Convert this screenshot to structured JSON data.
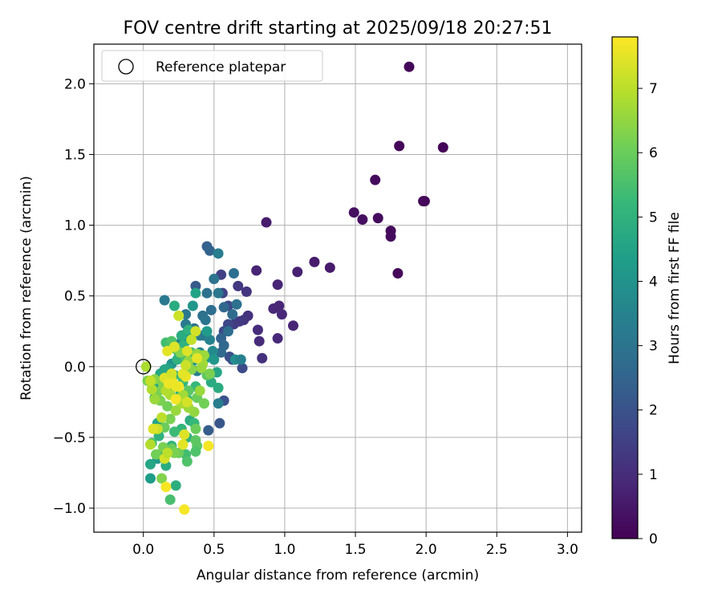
{
  "chart_data": {
    "type": "scatter",
    "title": "FOV centre drift starting at 2025/09/18 20:27:51",
    "xlabel": "Angular distance from reference (arcmin)",
    "ylabel": "Rotation from reference (arcmin)",
    "xlim": [
      -0.35,
      3.1
    ],
    "ylim": [
      -1.17,
      2.28
    ],
    "xticks": [
      0.0,
      0.5,
      1.0,
      1.5,
      2.0,
      2.5,
      3.0
    ],
    "xtick_labels": [
      "0.0",
      "0.5",
      "1.0",
      "1.5",
      "2.0",
      "2.5",
      "3.0"
    ],
    "yticks": [
      -1.0,
      -0.5,
      0.0,
      0.5,
      1.0,
      1.5,
      2.0
    ],
    "ytick_labels": [
      "−1.0",
      "−0.5",
      "0.0",
      "0.5",
      "1.0",
      "1.5",
      "2.0"
    ],
    "grid": true,
    "legend": {
      "placement": "top-left",
      "label": "Reference platepar",
      "marker": "open-circle"
    },
    "reference_point": {
      "x": 0.0,
      "y": 0.0
    },
    "colorbar": {
      "label": "Hours from first FF file",
      "colormap": "viridis",
      "range": [
        0,
        7.8
      ],
      "ticks": [
        0,
        1,
        2,
        3,
        4,
        5,
        6,
        7
      ],
      "tick_labels": [
        "0",
        "1",
        "2",
        "3",
        "4",
        "5",
        "6",
        "7"
      ]
    },
    "colormap_stops": [
      "#440154",
      "#482878",
      "#3e4989",
      "#31688e",
      "#26828e",
      "#1f9e89",
      "#35b779",
      "#6ece58",
      "#b5de2b",
      "#fde725"
    ],
    "points": [
      [
        1.88,
        2.12,
        0.1
      ],
      [
        1.81,
        1.56,
        0.1
      ],
      [
        2.12,
        1.55,
        0.1
      ],
      [
        1.64,
        1.32,
        0.2
      ],
      [
        1.98,
        1.17,
        0.1
      ],
      [
        1.99,
        1.17,
        0.15
      ],
      [
        1.49,
        1.09,
        0.3
      ],
      [
        1.55,
        1.04,
        0.3
      ],
      [
        1.66,
        1.05,
        0.25
      ],
      [
        1.75,
        0.96,
        0.2
      ],
      [
        1.75,
        0.92,
        0.2
      ],
      [
        1.8,
        0.66,
        0.15
      ],
      [
        0.87,
        1.02,
        0.6
      ],
      [
        1.21,
        0.74,
        0.6
      ],
      [
        1.32,
        0.7,
        0.55
      ],
      [
        1.09,
        0.67,
        0.7
      ],
      [
        0.8,
        0.68,
        0.8
      ],
      [
        0.95,
        0.58,
        0.8
      ],
      [
        0.92,
        0.41,
        0.9
      ],
      [
        0.96,
        0.43,
        0.85
      ],
      [
        0.98,
        0.37,
        0.9
      ],
      [
        1.06,
        0.29,
        0.8
      ],
      [
        0.95,
        0.2,
        0.9
      ],
      [
        0.82,
        0.18,
        0.95
      ],
      [
        0.81,
        0.26,
        1.0
      ],
      [
        0.84,
        0.06,
        1.1
      ],
      [
        0.74,
        0.36,
        1.1
      ],
      [
        0.73,
        0.53,
        1.2
      ],
      [
        0.67,
        0.57,
        1.3
      ],
      [
        0.71,
        0.33,
        1.2
      ],
      [
        0.68,
        0.32,
        1.3
      ],
      [
        0.64,
        0.3,
        1.4
      ],
      [
        0.55,
        0.65,
        1.5
      ],
      [
        0.56,
        0.52,
        1.6
      ],
      [
        0.6,
        0.43,
        1.7
      ],
      [
        0.6,
        0.3,
        1.7
      ],
      [
        0.57,
        0.25,
        1.8
      ],
      [
        0.61,
        0.07,
        1.9
      ],
      [
        0.63,
        0.05,
        1.9
      ],
      [
        0.7,
        -0.01,
        1.8
      ],
      [
        0.57,
        -0.24,
        2.0
      ],
      [
        0.54,
        -0.4,
        2.1
      ],
      [
        0.46,
        -0.45,
        2.3
      ],
      [
        0.37,
        0.57,
        2.2
      ],
      [
        0.45,
        0.85,
        2.4
      ],
      [
        0.47,
        0.82,
        2.5
      ],
      [
        0.53,
        0.8,
        3.3
      ],
      [
        0.5,
        0.62,
        3.0
      ],
      [
        0.45,
        0.52,
        2.9
      ],
      [
        0.53,
        0.52,
        3.1
      ],
      [
        0.64,
        0.66,
        2.8
      ],
      [
        0.57,
        0.42,
        2.6
      ],
      [
        0.63,
        0.37,
        2.7
      ],
      [
        0.66,
        0.44,
        2.9
      ],
      [
        0.6,
        0.25,
        2.8
      ],
      [
        0.55,
        0.2,
        2.5
      ],
      [
        0.57,
        0.15,
        2.6
      ],
      [
        0.55,
        0.1,
        2.7
      ],
      [
        0.48,
        0.4,
        2.8
      ],
      [
        0.42,
        0.36,
        2.9
      ],
      [
        0.44,
        0.33,
        3.0
      ],
      [
        0.3,
        0.37,
        3.1
      ],
      [
        0.3,
        0.3,
        3.2
      ],
      [
        0.33,
        0.23,
        3.3
      ],
      [
        0.36,
        0.27,
        3.0
      ],
      [
        0.4,
        0.22,
        3.3
      ],
      [
        0.43,
        0.22,
        3.2
      ],
      [
        0.47,
        0.19,
        3.5
      ],
      [
        0.49,
        0.11,
        3.7
      ],
      [
        0.4,
        0.1,
        3.6
      ],
      [
        0.35,
        0.04,
        3.8
      ],
      [
        0.38,
        -0.03,
        3.3
      ],
      [
        0.31,
        0.24,
        3.7
      ],
      [
        0.3,
        0.18,
        4.2
      ],
      [
        0.35,
        0.43,
        4.1
      ],
      [
        0.37,
        0.52,
        4.5
      ],
      [
        0.45,
        0.25,
        4.2
      ],
      [
        0.44,
        0.06,
        4.4
      ],
      [
        0.5,
        0.05,
        4.1
      ],
      [
        0.52,
        -0.04,
        4.6
      ],
      [
        0.48,
        -0.11,
        4.8
      ],
      [
        0.53,
        -0.15,
        4.8
      ],
      [
        0.53,
        -0.26,
        3.3
      ],
      [
        0.65,
        0.05,
        3.8
      ],
      [
        0.69,
        0.05,
        3.4
      ],
      [
        0.15,
        0.47,
        3.2
      ],
      [
        0.22,
        0.43,
        4.8
      ],
      [
        0.25,
        0.16,
        3.2
      ],
      [
        0.25,
        0.1,
        4.3
      ],
      [
        0.2,
        0.02,
        3.9
      ],
      [
        0.18,
        -0.01,
        4.4
      ],
      [
        0.15,
        -0.02,
        4.6
      ],
      [
        0.1,
        -0.12,
        4.5
      ],
      [
        0.08,
        -0.22,
        4.7
      ],
      [
        0.12,
        -0.05,
        4.6
      ],
      [
        0.17,
        -0.09,
        4.7
      ],
      [
        0.2,
        -0.15,
        4.8
      ],
      [
        0.22,
        -0.06,
        5.0
      ],
      [
        0.28,
        -0.11,
        5.2
      ],
      [
        0.26,
        -0.2,
        5.0
      ],
      [
        0.31,
        -0.23,
        5.1
      ],
      [
        0.37,
        -0.14,
        5.2
      ],
      [
        0.33,
        -0.38,
        4.8
      ],
      [
        0.36,
        -0.4,
        5.2
      ],
      [
        0.31,
        -0.5,
        5.0
      ],
      [
        0.27,
        -0.44,
        5.1
      ],
      [
        0.22,
        -0.46,
        5.3
      ],
      [
        0.2,
        -0.56,
        5.1
      ],
      [
        0.18,
        -0.58,
        4.6
      ],
      [
        0.14,
        -0.6,
        4.7
      ],
      [
        0.1,
        -0.65,
        4.2
      ],
      [
        0.05,
        -0.69,
        4.6
      ],
      [
        0.05,
        -0.79,
        4.3
      ],
      [
        0.16,
        -0.7,
        4.8
      ],
      [
        0.23,
        -0.84,
        4.9
      ],
      [
        0.19,
        -0.94,
        5.5
      ],
      [
        0.1,
        -0.4,
        4.5
      ],
      [
        0.11,
        -0.49,
        5.0
      ],
      [
        0.06,
        -0.54,
        5.5
      ],
      [
        0.27,
        0.22,
        4.8
      ],
      [
        0.32,
        0.26,
        5.0
      ],
      [
        0.28,
        0.15,
        5.0
      ],
      [
        0.24,
        0.05,
        5.0
      ],
      [
        0.34,
        0.1,
        5.5
      ],
      [
        0.3,
        0.06,
        5.5
      ],
      [
        0.42,
        0.08,
        5.5
      ],
      [
        0.45,
        -0.06,
        5.8
      ],
      [
        0.47,
        -0.05,
        6.2
      ],
      [
        0.28,
        -0.08,
        5.5
      ],
      [
        0.32,
        -0.17,
        5.8
      ],
      [
        0.38,
        -0.22,
        6.0
      ],
      [
        0.43,
        -0.26,
        6.1
      ],
      [
        0.37,
        -0.44,
        6.0
      ],
      [
        0.37,
        -0.52,
        5.8
      ],
      [
        0.38,
        -0.56,
        5.8
      ],
      [
        0.37,
        -0.6,
        5.6
      ],
      [
        0.3,
        -0.62,
        5.4
      ],
      [
        0.31,
        -0.67,
        5.6
      ],
      [
        0.25,
        -0.61,
        6.0
      ],
      [
        0.2,
        -0.58,
        6.0
      ],
      [
        0.22,
        -0.61,
        6.2
      ],
      [
        0.14,
        -0.57,
        6.2
      ],
      [
        0.13,
        -0.79,
        6.3
      ],
      [
        0.09,
        -0.62,
        6.1
      ],
      [
        0.15,
        -0.43,
        6.0
      ],
      [
        0.19,
        -0.37,
        6.2
      ],
      [
        0.17,
        -0.28,
        6.1
      ],
      [
        0.12,
        -0.24,
        6.2
      ],
      [
        0.1,
        -0.18,
        6.2
      ],
      [
        0.14,
        -0.13,
        6.3
      ],
      [
        0.08,
        -0.09,
        6.4
      ],
      [
        0.03,
        -0.1,
        6.2
      ],
      [
        0.16,
        0.17,
        5.4
      ],
      [
        0.2,
        0.18,
        5.6
      ],
      [
        0.22,
        0.13,
        6.0
      ],
      [
        0.26,
        0.1,
        6.3
      ],
      [
        0.32,
        0.04,
        6.5
      ],
      [
        0.34,
        -0.02,
        6.4
      ],
      [
        0.38,
        0.09,
        6.5
      ],
      [
        0.43,
        0.08,
        6.6
      ],
      [
        0.42,
        0.02,
        6.7
      ],
      [
        0.41,
        -0.01,
        6.6
      ],
      [
        0.4,
        -0.17,
        6.6
      ],
      [
        0.36,
        -0.32,
        6.5
      ],
      [
        0.32,
        -0.29,
        6.6
      ],
      [
        0.28,
        -0.2,
        6.7
      ],
      [
        0.27,
        -0.26,
        6.8
      ],
      [
        0.23,
        -0.31,
        6.6
      ],
      [
        0.19,
        -0.2,
        6.8
      ],
      [
        0.16,
        -0.17,
        6.9
      ],
      [
        0.08,
        -0.23,
        6.6
      ],
      [
        0.02,
        0.0,
        6.8
      ],
      [
        0.06,
        -0.16,
        6.9
      ],
      [
        0.05,
        -0.1,
        7.1
      ],
      [
        0.25,
        0.36,
        7.2
      ],
      [
        0.37,
        0.25,
        7.3
      ],
      [
        0.34,
        0.19,
        7.1
      ],
      [
        0.31,
        0.11,
        7.4
      ],
      [
        0.17,
        0.11,
        7.5
      ],
      [
        0.22,
        0.14,
        7.4
      ],
      [
        0.2,
        -0.09,
        7.5
      ],
      [
        0.15,
        -0.08,
        7.4
      ],
      [
        0.18,
        -0.12,
        7.6
      ],
      [
        0.25,
        -0.14,
        7.7
      ],
      [
        0.3,
        -0.07,
        7.6
      ],
      [
        0.23,
        -0.23,
        7.7
      ],
      [
        0.28,
        -0.05,
        7.5
      ],
      [
        0.3,
        0.01,
        7.2
      ],
      [
        0.38,
        0.06,
        7.5
      ],
      [
        0.31,
        -0.25,
        7.3
      ],
      [
        0.13,
        -0.36,
        7.0
      ],
      [
        0.1,
        -0.44,
        7.2
      ],
      [
        0.15,
        -0.65,
        7.3
      ],
      [
        0.16,
        -0.85,
        7.7
      ],
      [
        0.29,
        -0.48,
        7.4
      ],
      [
        0.28,
        -0.55,
        7.5
      ],
      [
        0.46,
        -0.56,
        7.7
      ],
      [
        0.29,
        -1.01,
        7.7
      ],
      [
        0.07,
        -0.44,
        7.4
      ],
      [
        0.05,
        -0.55,
        6.9
      ],
      [
        0.17,
        -0.61,
        7.0
      ],
      [
        0.2,
        -0.05,
        7.3
      ],
      [
        0.23,
        -0.14,
        7.6
      ],
      [
        0.21,
        -0.12,
        7.6
      ]
    ]
  }
}
